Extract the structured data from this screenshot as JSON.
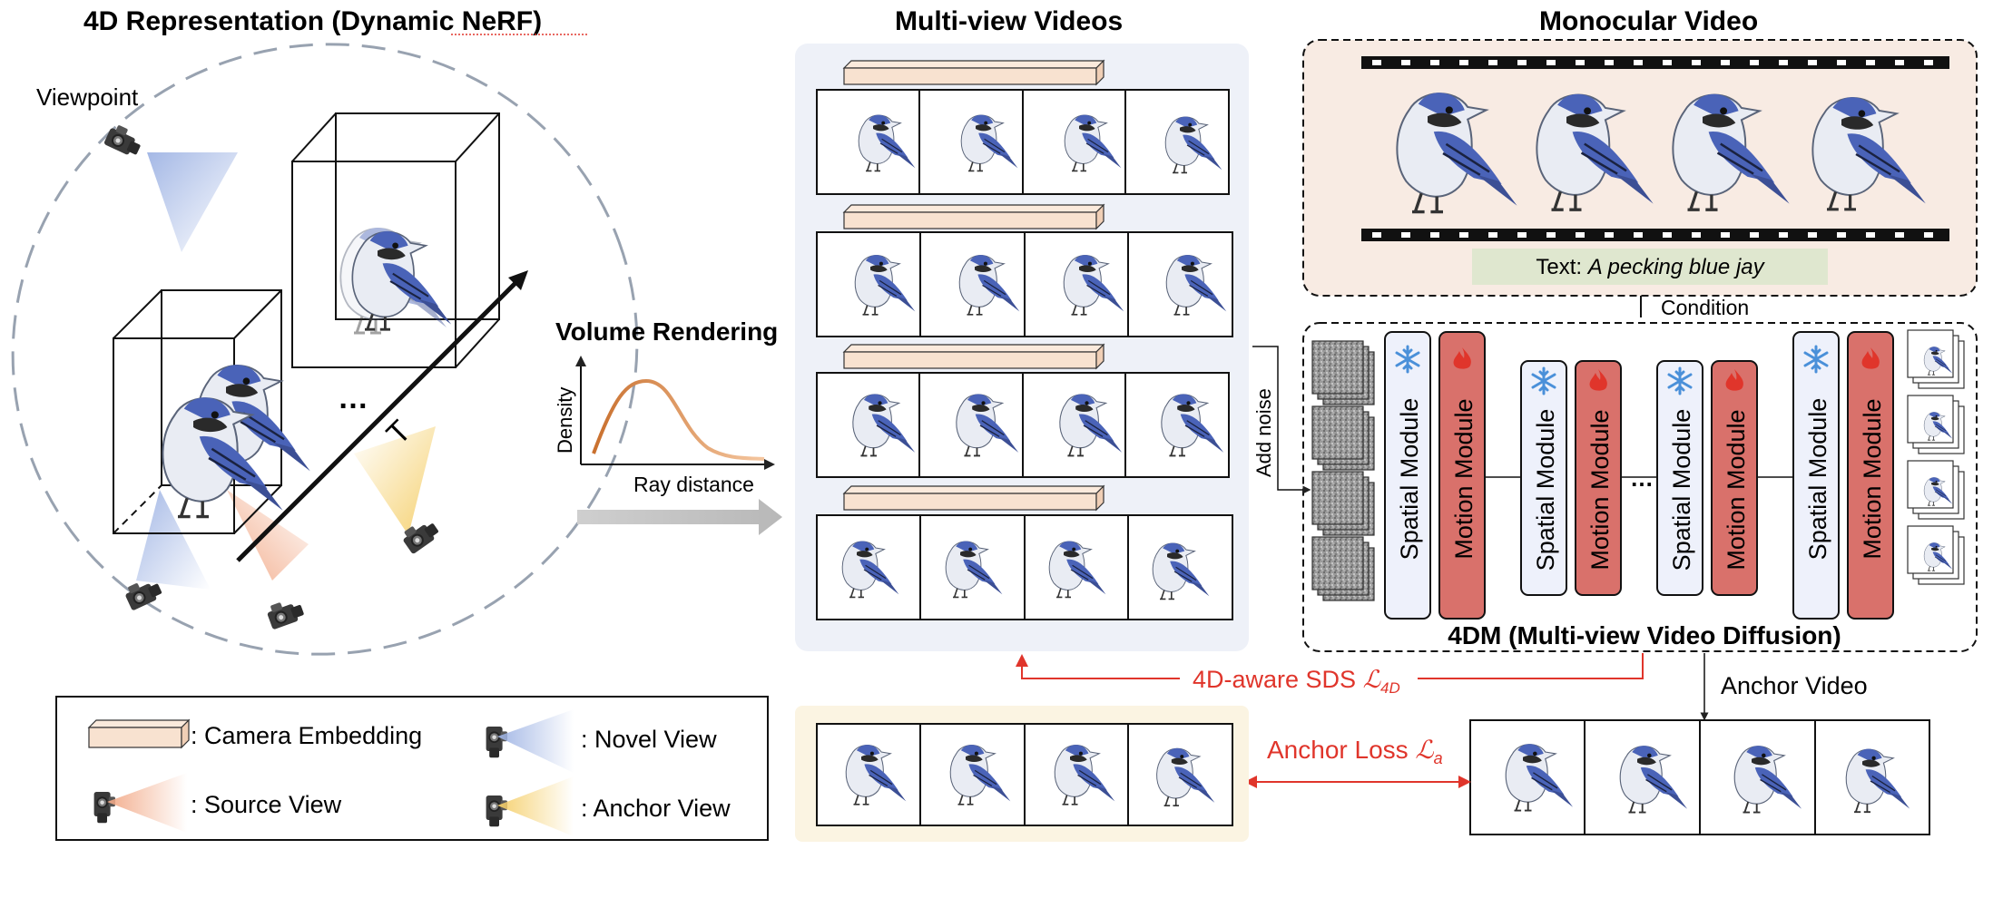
{
  "titles": {
    "left": "4D Representation (Dynamic NeRF)",
    "multiview": "Multi-view Videos",
    "monocular": "Monocular Video"
  },
  "left": {
    "viewpoint": "Viewpoint",
    "time_axis": "T",
    "ellipsis": "…"
  },
  "rendering": {
    "title": "Volume Rendering",
    "y_axis": "Density",
    "x_axis": "Ray distance"
  },
  "monocular": {
    "text_prefix": "Text:",
    "text_prompt": "A pecking blue jay",
    "condition": "Condition"
  },
  "diffusion": {
    "add_noise": "Add noise",
    "spatial": "Spatial Module",
    "motion": "Motion Module",
    "dots": "…",
    "caption": "4DM (Multi-view Video Diffusion)"
  },
  "losses": {
    "sds": "4D-aware SDS",
    "sds_symbol": "ℒ",
    "sds_sub": "4D",
    "anchor_video": "Anchor Video",
    "anchor_loss": "Anchor Loss",
    "anchor_symbol": "ℒ",
    "anchor_sub": "a"
  },
  "legend": {
    "camera_embedding": ": Camera Embedding",
    "novel_view": ": Novel View",
    "source_view": ": Source View",
    "anchor_view": ": Anchor View"
  },
  "colors": {
    "embedding": "#f8e2d0",
    "spatial_fill": "#eef1fb",
    "motion_fill": "#d9716b",
    "loss_red": "#e0352b",
    "multiview_panel": "#eef1f8",
    "monocular_panel": "#f8ebe3",
    "anchor_panel": "#fbf4e2",
    "text_box": "#dfe7cf",
    "bird_blue": "#4a63b8",
    "novel_cone": "#a9bde6",
    "source_cone": "#f2b79b",
    "anchor_cone": "#f5d680"
  },
  "icons": [
    "camera-icon",
    "snowflake-icon",
    "flame-icon",
    "bird-icon"
  ]
}
